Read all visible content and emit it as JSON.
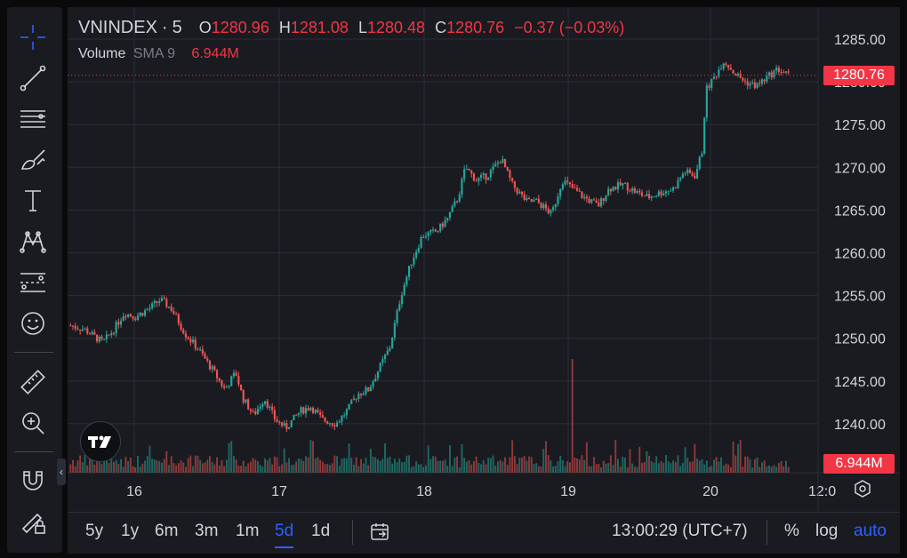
{
  "legend": {
    "symbol": "VNINDEX",
    "separator": "·",
    "interval": "5",
    "open_label": "O",
    "open": "1280.96",
    "high_label": "H",
    "high": "1281.08",
    "low_label": "L",
    "low": "1280.48",
    "close_label": "C",
    "close": "1280.76",
    "change": "−0.37 (−0.03%)"
  },
  "volume_legend": {
    "label": "Volume",
    "indicator": "SMA 9",
    "value": "6.944M"
  },
  "price_tag": "1280.76",
  "volume_tag": "6.944M",
  "bottom_bar": {
    "timeframes": [
      "5y",
      "1y",
      "6m",
      "3m",
      "1m",
      "5d",
      "1d"
    ],
    "active": "5d",
    "clock": "13:00:29 (UTC+7)",
    "percent": "%",
    "log": "log",
    "auto": "auto"
  },
  "toolbar_icons": [
    "crosshair-icon",
    "trend-line-icon",
    "fib-retracement-icon",
    "brush-icon",
    "text-icon",
    "pattern-icon",
    "prediction-icon",
    "emoji-icon",
    "ruler-icon",
    "zoom-in-icon",
    "magnet-icon",
    "lock-drawing-icon"
  ],
  "colors": {
    "up": "#26a69a",
    "down": "#ef5350",
    "background": "#1a1b21",
    "grid": "#2a2e39",
    "accent": "#2962ff"
  },
  "chart_data": {
    "type": "candlestick",
    "symbol": "VNINDEX",
    "y_ticks": [
      "1285.00",
      "1280.00",
      "1275.00",
      "1270.00",
      "1265.00",
      "1260.00",
      "1255.00",
      "1250.00",
      "1245.00",
      "1240.00"
    ],
    "ylim": [
      1234.5,
      1288.5
    ],
    "x_ticks": [
      "16",
      "17",
      "18",
      "19",
      "20",
      "12:0"
    ],
    "current_price": 1280.76,
    "grid": true,
    "series_path": [
      {
        "t": 0,
        "p": 1251.5
      },
      {
        "t": 0.02,
        "p": 1251
      },
      {
        "t": 0.045,
        "p": 1249.5
      },
      {
        "t": 0.06,
        "p": 1251
      },
      {
        "t": 0.075,
        "p": 1253
      },
      {
        "t": 0.09,
        "p": 1252.5
      },
      {
        "t": 0.11,
        "p": 1253.5
      },
      {
        "t": 0.125,
        "p": 1254.5
      },
      {
        "t": 0.14,
        "p": 1253.5
      },
      {
        "t": 0.16,
        "p": 1250.5
      },
      {
        "t": 0.18,
        "p": 1248.5
      },
      {
        "t": 0.2,
        "p": 1246
      },
      {
        "t": 0.215,
        "p": 1244
      },
      {
        "t": 0.23,
        "p": 1246
      },
      {
        "t": 0.24,
        "p": 1243
      },
      {
        "t": 0.255,
        "p": 1241
      },
      {
        "t": 0.27,
        "p": 1243
      },
      {
        "t": 0.285,
        "p": 1240.5
      },
      {
        "t": 0.3,
        "p": 1239.5
      },
      {
        "t": 0.32,
        "p": 1241.5
      },
      {
        "t": 0.335,
        "p": 1242
      },
      {
        "t": 0.35,
        "p": 1240.5
      },
      {
        "t": 0.37,
        "p": 1240
      },
      {
        "t": 0.385,
        "p": 1241.5
      },
      {
        "t": 0.4,
        "p": 1243.5
      },
      {
        "t": 0.415,
        "p": 1244
      },
      {
        "t": 0.43,
        "p": 1246.5
      },
      {
        "t": 0.445,
        "p": 1249
      },
      {
        "t": 0.455,
        "p": 1253
      },
      {
        "t": 0.46,
        "p": 1255
      },
      {
        "t": 0.475,
        "p": 1259
      },
      {
        "t": 0.49,
        "p": 1262
      },
      {
        "t": 0.51,
        "p": 1262.5
      },
      {
        "t": 0.525,
        "p": 1264
      },
      {
        "t": 0.54,
        "p": 1266.5
      },
      {
        "t": 0.55,
        "p": 1270
      },
      {
        "t": 0.565,
        "p": 1268.5
      },
      {
        "t": 0.58,
        "p": 1269
      },
      {
        "t": 0.6,
        "p": 1271
      },
      {
        "t": 0.615,
        "p": 1268
      },
      {
        "t": 0.635,
        "p": 1266
      },
      {
        "t": 0.65,
        "p": 1266
      },
      {
        "t": 0.67,
        "p": 1264.5
      },
      {
        "t": 0.685,
        "p": 1268.5
      },
      {
        "t": 0.7,
        "p": 1267.5
      },
      {
        "t": 0.715,
        "p": 1266.5
      },
      {
        "t": 0.735,
        "p": 1265.5
      },
      {
        "t": 0.75,
        "p": 1267.5
      },
      {
        "t": 0.77,
        "p": 1268
      },
      {
        "t": 0.79,
        "p": 1267
      },
      {
        "t": 0.805,
        "p": 1266.5
      },
      {
        "t": 0.82,
        "p": 1267
      },
      {
        "t": 0.84,
        "p": 1267.5
      },
      {
        "t": 0.855,
        "p": 1269.5
      },
      {
        "t": 0.87,
        "p": 1269
      },
      {
        "t": 0.88,
        "p": 1272
      },
      {
        "t": 0.885,
        "p": 1279
      },
      {
        "t": 0.9,
        "p": 1281
      },
      {
        "t": 0.91,
        "p": 1282.5
      },
      {
        "t": 0.925,
        "p": 1281
      },
      {
        "t": 0.94,
        "p": 1280
      },
      {
        "t": 0.955,
        "p": 1279.5
      },
      {
        "t": 0.97,
        "p": 1280.5
      },
      {
        "t": 0.985,
        "p": 1281.5
      },
      {
        "t": 1,
        "p": 1280.76
      }
    ],
    "volume_spike": {
      "t": 0.7,
      "relative": 1.0
    }
  }
}
